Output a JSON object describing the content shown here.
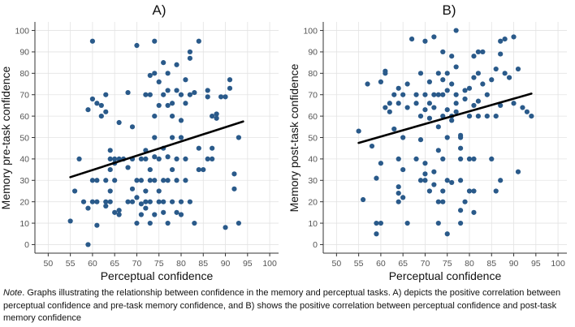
{
  "colors": {
    "point": "#2a5a8a",
    "trend": "#000000",
    "panel_bg": "#ffffff",
    "grid": "#e3e3e3",
    "axis": "#333333",
    "tick_label": "#555555"
  },
  "note": {
    "label": "Note",
    "text": ". Graphs illustrating the relationship between confidence in the memory and perceptual tasks. A) depicts the positive correlation between perceptual confidence and pre-task memory confidence, and B) shows the positive correlation between perceptual confidence and post-task memory confidence"
  },
  "chart_data": [
    {
      "type": "scatter",
      "panel": "A)",
      "title": "A)",
      "xlabel": "Perceptual confidence",
      "ylabel": "Memory pre-task confidence",
      "xlim": [
        47,
        102
      ],
      "ylim": [
        -4,
        104
      ],
      "xticks": [
        50,
        55,
        60,
        65,
        70,
        75,
        80,
        85,
        90,
        95,
        100
      ],
      "yticks": [
        0,
        10,
        20,
        30,
        40,
        50,
        60,
        70,
        80,
        90,
        100
      ],
      "trend_line": {
        "x": [
          55,
          94
        ],
        "y": [
          31.5,
          57.5
        ]
      },
      "points": [
        [
          55,
          11
        ],
        [
          56,
          25
        ],
        [
          57,
          40
        ],
        [
          58,
          20
        ],
        [
          59,
          17
        ],
        [
          59,
          0
        ],
        [
          59,
          63
        ],
        [
          60,
          95
        ],
        [
          60,
          68
        ],
        [
          60,
          30
        ],
        [
          60,
          20
        ],
        [
          61,
          9
        ],
        [
          61,
          66
        ],
        [
          61,
          30
        ],
        [
          61,
          20
        ],
        [
          62,
          60
        ],
        [
          62,
          65
        ],
        [
          63,
          62
        ],
        [
          63,
          70
        ],
        [
          63,
          20
        ],
        [
          63,
          18
        ],
        [
          63,
          30
        ],
        [
          64,
          44
        ],
        [
          64,
          40
        ],
        [
          64,
          35
        ],
        [
          64,
          25
        ],
        [
          64,
          20
        ],
        [
          65,
          40
        ],
        [
          65,
          38
        ],
        [
          65,
          30
        ],
        [
          65,
          15
        ],
        [
          66,
          14
        ],
        [
          66,
          16
        ],
        [
          66,
          40
        ],
        [
          66,
          57
        ],
        [
          67,
          40
        ],
        [
          68,
          20
        ],
        [
          68,
          36
        ],
        [
          68,
          71
        ],
        [
          69,
          55
        ],
        [
          69,
          20
        ],
        [
          69,
          40
        ],
        [
          69,
          26
        ],
        [
          70,
          93
        ],
        [
          70,
          30
        ],
        [
          70,
          22
        ],
        [
          70,
          10
        ],
        [
          71,
          40
        ],
        [
          71,
          30
        ],
        [
          71,
          19
        ],
        [
          71,
          14
        ],
        [
          72,
          70
        ],
        [
          72,
          44
        ],
        [
          72,
          40
        ],
        [
          72,
          25
        ],
        [
          72,
          20
        ],
        [
          72,
          17
        ],
        [
          73,
          70
        ],
        [
          73,
          79
        ],
        [
          73,
          35
        ],
        [
          73,
          30
        ],
        [
          73,
          20
        ],
        [
          73,
          10
        ],
        [
          74,
          95
        ],
        [
          74,
          80
        ],
        [
          74,
          60
        ],
        [
          74,
          50
        ],
        [
          74,
          41
        ],
        [
          74,
          30
        ],
        [
          74,
          14
        ],
        [
          75,
          76
        ],
        [
          75,
          65
        ],
        [
          75,
          40
        ],
        [
          75,
          25
        ],
        [
          75,
          20
        ],
        [
          76,
          85
        ],
        [
          76,
          70
        ],
        [
          76,
          45
        ],
        [
          76,
          30
        ],
        [
          76,
          20
        ],
        [
          76,
          15
        ],
        [
          77,
          80
        ],
        [
          77,
          72
        ],
        [
          77,
          65
        ],
        [
          77,
          41
        ],
        [
          77,
          30
        ],
        [
          77,
          10
        ],
        [
          78,
          66
        ],
        [
          78,
          60
        ],
        [
          78,
          50
        ],
        [
          78,
          35
        ],
        [
          78,
          20
        ],
        [
          79,
          84
        ],
        [
          79,
          72
        ],
        [
          79,
          40
        ],
        [
          79,
          30
        ],
        [
          79,
          15
        ],
        [
          80,
          70
        ],
        [
          80,
          58
        ],
        [
          80,
          50
        ],
        [
          80,
          20
        ],
        [
          80,
          14
        ],
        [
          81,
          77
        ],
        [
          81,
          66
        ],
        [
          81,
          40
        ],
        [
          81,
          30
        ],
        [
          82,
          90
        ],
        [
          82,
          87
        ],
        [
          82,
          70
        ],
        [
          82,
          20
        ],
        [
          83,
          71
        ],
        [
          83,
          10
        ],
        [
          84,
          95
        ],
        [
          84,
          45
        ],
        [
          84,
          35
        ],
        [
          85,
          35
        ],
        [
          86,
          72
        ],
        [
          86,
          69
        ],
        [
          86,
          40
        ],
        [
          87,
          60
        ],
        [
          87,
          45
        ],
        [
          87,
          40
        ],
        [
          88,
          59
        ],
        [
          88,
          61
        ],
        [
          89,
          69
        ],
        [
          90,
          8
        ],
        [
          90,
          69
        ],
        [
          91,
          73
        ],
        [
          91,
          77
        ],
        [
          92,
          26
        ],
        [
          92,
          33
        ],
        [
          93,
          10
        ],
        [
          93,
          50
        ]
      ]
    },
    {
      "type": "scatter",
      "panel": "B)",
      "title": "B)",
      "xlabel": "Perceptual confidence",
      "ylabel": "Memory post-task confidence",
      "xlim": [
        47,
        102
      ],
      "ylim": [
        -4,
        104
      ],
      "xticks": [
        50,
        55,
        60,
        65,
        70,
        75,
        80,
        85,
        90,
        95,
        100
      ],
      "yticks": [
        0,
        10,
        20,
        30,
        40,
        50,
        60,
        70,
        80,
        90,
        100
      ],
      "trend_line": {
        "x": [
          55,
          94
        ],
        "y": [
          47.5,
          70.5
        ]
      },
      "points": [
        [
          55,
          53
        ],
        [
          56,
          21
        ],
        [
          57,
          75
        ],
        [
          58,
          46
        ],
        [
          59,
          31
        ],
        [
          59,
          10
        ],
        [
          59,
          5
        ],
        [
          60,
          38
        ],
        [
          60,
          10
        ],
        [
          60,
          76
        ],
        [
          61,
          81
        ],
        [
          61,
          64
        ],
        [
          61,
          80
        ],
        [
          62,
          66
        ],
        [
          62,
          62
        ],
        [
          63,
          70
        ],
        [
          63,
          54
        ],
        [
          64,
          40
        ],
        [
          64,
          27
        ],
        [
          64,
          24
        ],
        [
          64,
          20
        ],
        [
          64,
          73
        ],
        [
          64,
          66
        ],
        [
          65,
          70
        ],
        [
          65,
          50
        ],
        [
          65,
          35
        ],
        [
          65,
          22
        ],
        [
          66,
          75
        ],
        [
          66,
          64
        ],
        [
          66,
          10
        ],
        [
          67,
          96
        ],
        [
          68,
          70
        ],
        [
          68,
          66
        ],
        [
          68,
          40
        ],
        [
          69,
          80
        ],
        [
          69,
          60
        ],
        [
          69,
          30
        ],
        [
          69,
          49
        ],
        [
          70,
          95
        ],
        [
          70,
          70
        ],
        [
          70,
          63
        ],
        [
          70,
          38
        ],
        [
          70,
          30
        ],
        [
          70,
          33
        ],
        [
          71,
          76
        ],
        [
          71,
          66
        ],
        [
          71,
          59
        ],
        [
          71,
          25
        ],
        [
          72,
          97
        ],
        [
          72,
          70
        ],
        [
          72,
          64
        ],
        [
          72,
          34
        ],
        [
          72,
          28
        ],
        [
          73,
          80
        ],
        [
          73,
          70
        ],
        [
          73,
          55
        ],
        [
          73,
          44
        ],
        [
          73,
          20
        ],
        [
          73,
          10
        ],
        [
          74,
          90
        ],
        [
          74,
          77
        ],
        [
          74,
          70
        ],
        [
          74,
          60
        ],
        [
          74,
          40
        ],
        [
          74,
          20
        ],
        [
          74,
          25
        ],
        [
          75,
          80
        ],
        [
          75,
          72
        ],
        [
          75,
          63
        ],
        [
          75,
          50
        ],
        [
          75,
          30
        ],
        [
          75,
          5
        ],
        [
          76,
          88
        ],
        [
          76,
          75
        ],
        [
          76,
          60
        ],
        [
          76,
          58
        ],
        [
          76,
          29
        ],
        [
          77,
          100
        ],
        [
          77,
          70
        ],
        [
          77,
          66
        ],
        [
          77,
          62
        ],
        [
          77,
          83
        ],
        [
          78,
          51
        ],
        [
          78,
          50
        ],
        [
          78,
          45
        ],
        [
          78,
          40
        ],
        [
          78,
          30
        ],
        [
          78,
          16
        ],
        [
          78,
          10
        ],
        [
          79,
          72
        ],
        [
          79,
          68
        ],
        [
          79,
          20
        ],
        [
          80,
          73
        ],
        [
          80,
          60
        ],
        [
          80,
          40
        ],
        [
          80,
          25
        ],
        [
          81,
          88
        ],
        [
          81,
          78
        ],
        [
          81,
          65
        ],
        [
          81,
          40
        ],
        [
          81,
          25
        ],
        [
          81,
          15
        ],
        [
          82,
          90
        ],
        [
          82,
          80
        ],
        [
          82,
          67
        ],
        [
          82,
          60
        ],
        [
          83,
          90
        ],
        [
          83,
          75
        ],
        [
          84,
          70
        ],
        [
          84,
          60
        ],
        [
          85,
          77
        ],
        [
          85,
          40
        ],
        [
          86,
          82
        ],
        [
          86,
          60
        ],
        [
          86,
          25
        ],
        [
          87,
          95
        ],
        [
          87,
          89
        ],
        [
          87,
          65
        ],
        [
          87,
          30
        ],
        [
          88,
          96
        ],
        [
          88,
          80
        ],
        [
          89,
          78
        ],
        [
          90,
          97
        ],
        [
          90,
          66
        ],
        [
          91,
          34
        ],
        [
          91,
          82
        ],
        [
          92,
          64
        ],
        [
          93,
          62
        ],
        [
          94,
          60
        ]
      ]
    }
  ]
}
